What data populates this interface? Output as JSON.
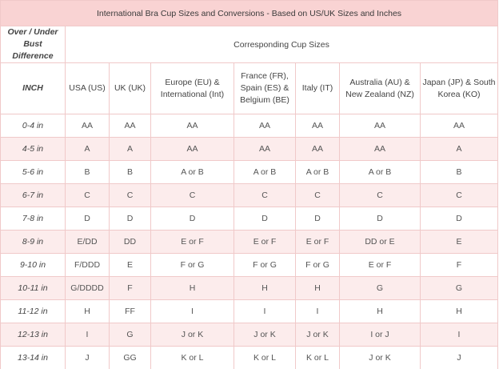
{
  "table": {
    "title": "International Bra Cup Sizes and Conversions - Based on US/UK Sizes and Inches",
    "difference_header": "Over / Under Bust Difference",
    "group_header": "Corresponding Cup Sizes",
    "unit_header": "INCH",
    "columns": [
      "USA (US)",
      "UK (UK)",
      "Europe (EU) & International (Int)",
      "France (FR), Spain (ES) & Belgium (BE)",
      "Italy (IT)",
      "Australia (AU) & New Zealand (NZ)",
      "Japan (JP) & South Korea (KO)"
    ],
    "rows": [
      {
        "diff": "0-4 in",
        "cells": [
          "AA",
          "AA",
          "AA",
          "AA",
          "AA",
          "AA",
          "AA"
        ]
      },
      {
        "diff": "4-5 in",
        "cells": [
          "A",
          "A",
          "AA",
          "AA",
          "AA",
          "AA",
          "A"
        ]
      },
      {
        "diff": "5-6 in",
        "cells": [
          "B",
          "B",
          "A or B",
          "A or B",
          "A or B",
          "A or B",
          "B"
        ]
      },
      {
        "diff": "6-7 in",
        "cells": [
          "C",
          "C",
          "C",
          "C",
          "C",
          "C",
          "C"
        ]
      },
      {
        "diff": "7-8 in",
        "cells": [
          "D",
          "D",
          "D",
          "D",
          "D",
          "D",
          "D"
        ]
      },
      {
        "diff": "8-9 in",
        "cells": [
          "E/DD",
          "DD",
          "E or F",
          "E or F",
          "E or F",
          "DD or E",
          "E"
        ]
      },
      {
        "diff": "9-10 in",
        "cells": [
          "F/DDD",
          "E",
          "F or G",
          "F or G",
          "F or G",
          "E or F",
          "F"
        ]
      },
      {
        "diff": "10-11 in",
        "cells": [
          "G/DDDD",
          "F",
          "H",
          "H",
          "H",
          "G",
          "G"
        ]
      },
      {
        "diff": "11-12 in",
        "cells": [
          "H",
          "FF",
          "I",
          "I",
          "I",
          "H",
          "H"
        ]
      },
      {
        "diff": "12-13 in",
        "cells": [
          "I",
          "G",
          "J or K",
          "J or K",
          "J or K",
          "I or J",
          "I"
        ]
      },
      {
        "diff": "13-14 in",
        "cells": [
          "J",
          "GG",
          "K or L",
          "K or L",
          "K or L",
          "J or K",
          "J"
        ]
      }
    ]
  }
}
